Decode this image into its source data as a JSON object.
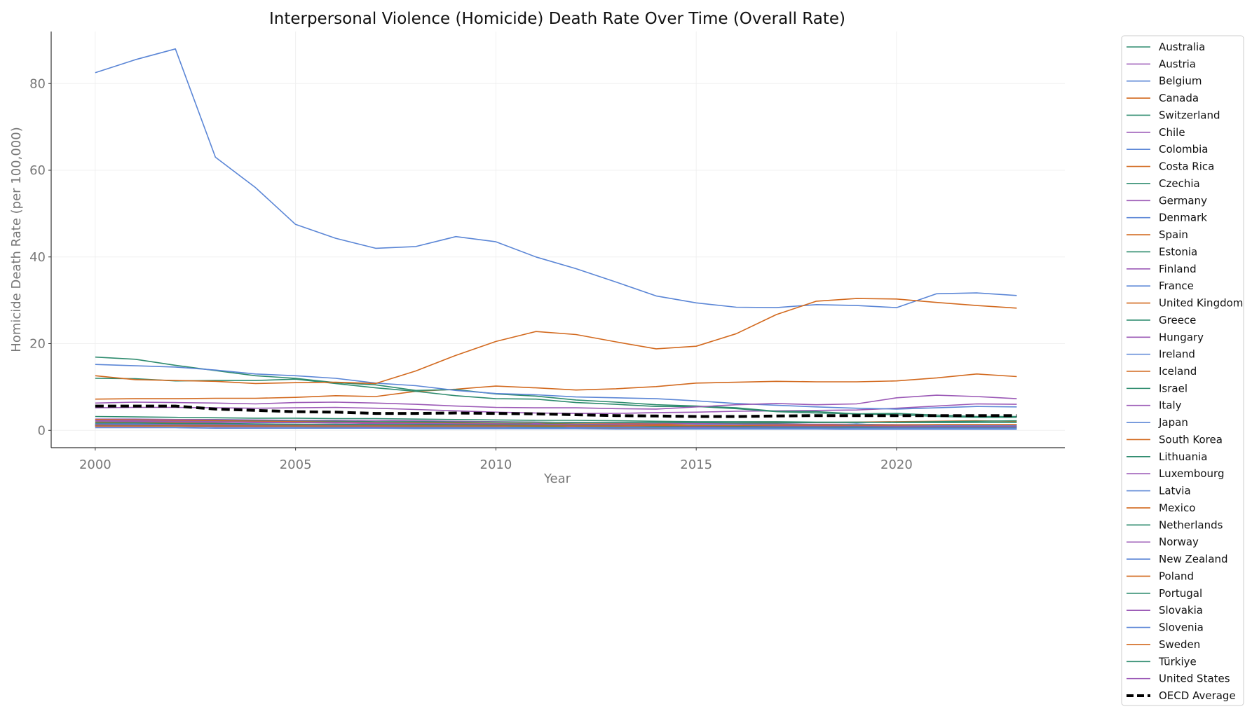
{
  "chart_data": {
    "type": "line",
    "title": "Interpersonal Violence (Homicide) Death Rate Over Time (Overall Rate)",
    "xlabel": "Year",
    "ylabel": "Homicide Death Rate (per 100,000)",
    "xlim": [
      1998.9,
      2024.2
    ],
    "ylim": [
      -4.0,
      92.0
    ],
    "xticks": [
      2000,
      2005,
      2010,
      2015,
      2020
    ],
    "yticks": [
      0,
      20,
      40,
      60,
      80
    ],
    "grid": true,
    "legend_position": "outside-right",
    "palette": [
      "#2e8b6e",
      "#9b59b6",
      "#5b86d6",
      "#d2691e"
    ],
    "average_color": "#000000",
    "x": [
      2000,
      2001,
      2002,
      2003,
      2004,
      2005,
      2006,
      2007,
      2008,
      2009,
      2010,
      2011,
      2012,
      2013,
      2014,
      2015,
      2016,
      2017,
      2018,
      2019,
      2020,
      2021,
      2022,
      2023
    ],
    "series": [
      {
        "name": "Australia",
        "values": [
          1.6,
          1.6,
          1.5,
          1.5,
          1.4,
          1.4,
          1.3,
          1.3,
          1.2,
          1.2,
          1.2,
          1.1,
          1.1,
          1.0,
          1.0,
          1.0,
          1.0,
          0.9,
          0.9,
          0.9,
          0.9,
          0.9,
          0.8,
          0.8
        ]
      },
      {
        "name": "Austria",
        "values": [
          0.9,
          0.9,
          0.9,
          0.8,
          0.8,
          0.8,
          0.8,
          0.8,
          0.7,
          0.7,
          0.7,
          0.7,
          0.7,
          0.7,
          0.6,
          0.6,
          0.7,
          0.7,
          0.7,
          0.6,
          0.6,
          0.6,
          0.6,
          0.6
        ]
      },
      {
        "name": "Belgium",
        "values": [
          2.0,
          2.0,
          1.9,
          1.9,
          1.8,
          1.8,
          1.8,
          1.7,
          1.7,
          1.6,
          1.6,
          1.6,
          1.5,
          1.5,
          1.5,
          1.4,
          1.4,
          1.3,
          1.3,
          1.2,
          1.2,
          1.2,
          1.2,
          1.2
        ]
      },
      {
        "name": "Canada",
        "values": [
          1.9,
          1.8,
          1.8,
          1.8,
          1.9,
          1.9,
          1.9,
          1.8,
          1.8,
          1.7,
          1.6,
          1.6,
          1.5,
          1.5,
          1.4,
          1.6,
          1.7,
          1.8,
          1.8,
          1.9,
          2.0,
          2.1,
          2.2,
          2.1
        ]
      },
      {
        "name": "Switzerland",
        "values": [
          1.2,
          1.1,
          1.1,
          1.0,
          1.0,
          0.9,
          0.9,
          0.9,
          0.8,
          0.8,
          0.8,
          0.7,
          0.7,
          0.7,
          0.6,
          0.6,
          0.6,
          0.6,
          0.6,
          0.5,
          0.5,
          0.5,
          0.5,
          0.5
        ]
      },
      {
        "name": "Chile",
        "values": [
          5.2,
          5.3,
          5.3,
          5.2,
          5.1,
          5.2,
          5.3,
          5.1,
          4.8,
          4.5,
          4.2,
          4.0,
          3.9,
          3.9,
          4.1,
          4.2,
          4.4,
          4.5,
          4.6,
          4.7,
          5.1,
          5.6,
          6.1,
          6.0
        ]
      },
      {
        "name": "Colombia",
        "values": [
          82.5,
          85.5,
          88.0,
          63.0,
          56.0,
          47.5,
          44.3,
          42.0,
          42.4,
          44.7,
          43.5,
          40.0,
          37.3,
          34.2,
          31.0,
          29.4,
          28.4,
          28.3,
          29.0,
          28.8,
          28.3,
          31.5,
          31.7,
          31.1
        ]
      },
      {
        "name": "Costa Rica",
        "values": [
          7.2,
          7.3,
          7.3,
          7.4,
          7.4,
          7.6,
          8.0,
          7.8,
          9.0,
          9.5,
          10.2,
          9.8,
          9.3,
          9.6,
          10.1,
          10.9,
          11.1,
          11.3,
          11.2,
          11.2,
          11.4,
          12.1,
          13.0,
          12.4
        ]
      },
      {
        "name": "Czechia",
        "values": [
          1.4,
          1.3,
          1.3,
          1.2,
          1.2,
          1.1,
          1.1,
          1.0,
          1.0,
          1.0,
          0.9,
          0.9,
          0.9,
          0.8,
          0.8,
          0.8,
          0.7,
          0.7,
          0.7,
          0.7,
          0.7,
          0.6,
          0.6,
          0.6
        ]
      },
      {
        "name": "Germany",
        "values": [
          0.9,
          0.9,
          0.9,
          0.9,
          0.8,
          0.8,
          0.8,
          0.7,
          0.7,
          0.7,
          0.7,
          0.7,
          0.7,
          0.6,
          0.6,
          0.6,
          0.7,
          0.7,
          0.6,
          0.6,
          0.6,
          0.6,
          0.6,
          0.6
        ]
      },
      {
        "name": "Denmark",
        "values": [
          1.1,
          1.1,
          1.0,
          1.0,
          1.0,
          1.0,
          1.0,
          0.9,
          0.9,
          0.9,
          0.9,
          0.9,
          0.9,
          0.9,
          0.9,
          0.9,
          1.0,
          1.0,
          1.0,
          0.9,
          0.9,
          0.9,
          0.9,
          0.9
        ]
      },
      {
        "name": "Spain",
        "values": [
          1.2,
          1.2,
          1.2,
          1.1,
          1.1,
          1.0,
          1.0,
          1.0,
          0.9,
          0.9,
          0.8,
          0.8,
          0.7,
          0.7,
          0.7,
          0.6,
          0.6,
          0.6,
          0.6,
          0.6,
          0.6,
          0.6,
          0.6,
          0.6
        ]
      },
      {
        "name": "Estonia",
        "values": [
          12.0,
          11.9,
          11.4,
          11.5,
          11.5,
          11.8,
          10.8,
          9.8,
          9.0,
          8.0,
          7.3,
          7.2,
          6.4,
          6.0,
          5.5,
          5.5,
          5.0,
          4.3,
          4.0,
          3.8,
          3.6,
          3.2,
          3.0,
          3.0
        ]
      },
      {
        "name": "Finland",
        "values": [
          2.6,
          2.6,
          2.5,
          2.5,
          2.4,
          2.3,
          2.3,
          2.3,
          2.2,
          2.1,
          2.0,
          1.9,
          1.8,
          1.7,
          1.7,
          1.6,
          1.5,
          1.5,
          1.4,
          1.4,
          1.3,
          1.3,
          1.3,
          1.3
        ]
      },
      {
        "name": "France",
        "values": [
          1.1,
          1.1,
          1.1,
          1.0,
          1.0,
          1.0,
          0.9,
          0.9,
          0.9,
          0.9,
          0.9,
          0.8,
          0.8,
          0.8,
          0.8,
          0.9,
          0.9,
          0.8,
          0.8,
          0.8,
          0.8,
          0.8,
          0.8,
          0.8
        ]
      },
      {
        "name": "United Kingdom",
        "values": [
          0.9,
          0.9,
          0.9,
          0.8,
          0.8,
          0.8,
          0.7,
          0.7,
          0.6,
          0.6,
          0.6,
          0.6,
          0.5,
          0.5,
          0.5,
          0.5,
          0.5,
          0.6,
          0.6,
          0.6,
          0.6,
          0.6,
          0.6,
          0.6
        ]
      },
      {
        "name": "Greece",
        "values": [
          1.1,
          1.1,
          1.1,
          1.1,
          1.1,
          1.1,
          1.2,
          1.2,
          1.3,
          1.4,
          1.5,
          1.5,
          1.4,
          1.3,
          1.2,
          1.1,
          1.0,
          1.0,
          0.9,
          0.9,
          0.9,
          0.9,
          0.9,
          0.9
        ]
      },
      {
        "name": "Hungary",
        "values": [
          2.2,
          2.1,
          2.0,
          1.9,
          1.8,
          1.8,
          1.7,
          1.6,
          1.6,
          1.5,
          1.4,
          1.3,
          1.3,
          1.2,
          1.2,
          1.1,
          1.1,
          1.0,
          1.0,
          0.9,
          0.9,
          0.9,
          0.8,
          0.8
        ]
      },
      {
        "name": "Ireland",
        "values": [
          1.2,
          1.2,
          1.1,
          1.1,
          1.1,
          1.1,
          1.1,
          1.1,
          1.0,
          1.0,
          1.0,
          0.9,
          0.9,
          0.9,
          0.8,
          0.8,
          0.8,
          0.8,
          0.8,
          0.8,
          0.8,
          0.7,
          0.7,
          0.7
        ]
      },
      {
        "name": "Iceland",
        "values": [
          1.3,
          1.2,
          1.2,
          1.2,
          1.1,
          1.1,
          1.0,
          1.0,
          1.0,
          0.9,
          0.9,
          0.9,
          0.8,
          0.8,
          0.8,
          0.8,
          0.8,
          0.8,
          0.8,
          0.8,
          0.8,
          0.8,
          0.8,
          0.8
        ]
      },
      {
        "name": "Israel",
        "values": [
          2.4,
          2.4,
          2.3,
          2.3,
          2.2,
          2.1,
          2.1,
          2.0,
          2.0,
          1.9,
          1.9,
          1.9,
          1.8,
          1.8,
          1.8,
          1.8,
          1.7,
          1.7,
          1.8,
          1.8,
          1.9,
          2.0,
          2.1,
          2.2
        ]
      },
      {
        "name": "Italy",
        "values": [
          1.2,
          1.2,
          1.1,
          1.1,
          1.0,
          1.0,
          1.0,
          0.9,
          0.9,
          0.9,
          0.8,
          0.8,
          0.8,
          0.8,
          0.7,
          0.7,
          0.7,
          0.7,
          0.6,
          0.6,
          0.6,
          0.6,
          0.6,
          0.6
        ]
      },
      {
        "name": "Japan",
        "values": [
          0.6,
          0.6,
          0.6,
          0.5,
          0.5,
          0.5,
          0.5,
          0.5,
          0.4,
          0.4,
          0.4,
          0.4,
          0.4,
          0.3,
          0.3,
          0.3,
          0.3,
          0.3,
          0.3,
          0.2,
          0.2,
          0.2,
          0.2,
          0.2
        ]
      },
      {
        "name": "South Korea",
        "values": [
          1.4,
          1.4,
          1.4,
          1.4,
          1.4,
          1.3,
          1.3,
          1.3,
          1.3,
          1.3,
          1.2,
          1.2,
          1.1,
          1.1,
          1.0,
          1.0,
          0.9,
          0.9,
          0.8,
          0.8,
          0.7,
          0.7,
          0.7,
          0.7
        ]
      },
      {
        "name": "Lithuania",
        "values": [
          16.9,
          16.4,
          15.0,
          13.8,
          12.6,
          12.0,
          11.0,
          10.5,
          9.2,
          9.4,
          8.4,
          7.9,
          7.0,
          6.5,
          5.9,
          5.6,
          5.2,
          4.4,
          4.3,
          3.8,
          3.9,
          3.5,
          3.2,
          3.2
        ]
      },
      {
        "name": "Luxembourg",
        "values": [
          1.3,
          1.3,
          1.2,
          1.2,
          1.2,
          1.1,
          1.1,
          1.0,
          1.0,
          0.9,
          0.9,
          0.9,
          0.8,
          0.8,
          0.8,
          0.8,
          0.7,
          0.7,
          0.7,
          0.7,
          0.7,
          0.6,
          0.6,
          0.6
        ]
      },
      {
        "name": "Latvia",
        "values": [
          15.2,
          14.9,
          14.6,
          13.9,
          13.0,
          12.6,
          12.0,
          10.9,
          10.3,
          9.2,
          8.5,
          8.2,
          7.7,
          7.5,
          7.3,
          6.8,
          6.2,
          5.8,
          5.4,
          5.1,
          4.9,
          5.2,
          5.5,
          5.4
        ]
      },
      {
        "name": "Mexico",
        "values": [
          12.6,
          11.7,
          11.5,
          11.3,
          10.8,
          11.0,
          11.1,
          10.8,
          13.7,
          17.3,
          20.5,
          22.8,
          22.1,
          20.4,
          18.8,
          19.4,
          22.3,
          26.7,
          29.8,
          30.4,
          30.3,
          29.5,
          28.8,
          28.2
        ]
      },
      {
        "name": "Netherlands",
        "values": [
          1.1,
          1.1,
          1.0,
          1.0,
          1.0,
          1.0,
          0.9,
          0.9,
          0.9,
          0.9,
          0.9,
          0.8,
          0.8,
          0.7,
          0.7,
          0.6,
          0.6,
          0.6,
          0.6,
          0.6,
          0.6,
          0.6,
          0.6,
          0.6
        ]
      },
      {
        "name": "Norway",
        "values": [
          0.9,
          0.9,
          0.9,
          0.8,
          0.8,
          0.8,
          0.8,
          0.7,
          0.7,
          0.7,
          0.7,
          1.6,
          0.7,
          0.6,
          0.6,
          0.6,
          0.6,
          0.5,
          0.5,
          0.5,
          0.5,
          0.5,
          0.5,
          0.5
        ]
      },
      {
        "name": "New Zealand",
        "values": [
          1.6,
          1.5,
          1.5,
          1.5,
          1.4,
          1.4,
          1.3,
          1.3,
          1.3,
          1.3,
          1.2,
          1.1,
          1.1,
          1.0,
          1.0,
          1.0,
          1.0,
          1.0,
          1.0,
          1.5,
          1.0,
          1.0,
          1.0,
          1.0
        ]
      },
      {
        "name": "Poland",
        "values": [
          2.5,
          2.4,
          2.3,
          2.2,
          2.1,
          2.0,
          1.9,
          1.8,
          1.7,
          1.6,
          1.5,
          1.4,
          1.3,
          1.2,
          1.1,
          1.0,
          1.0,
          0.9,
          0.9,
          0.8,
          0.8,
          0.8,
          0.8,
          0.8
        ]
      },
      {
        "name": "Portugal",
        "values": [
          1.7,
          1.7,
          1.6,
          1.6,
          1.5,
          1.4,
          1.4,
          1.3,
          1.3,
          1.3,
          1.2,
          1.2,
          1.1,
          1.1,
          1.0,
          1.0,
          0.9,
          0.9,
          0.9,
          0.8,
          0.8,
          0.8,
          0.8,
          0.8
        ]
      },
      {
        "name": "Slovakia",
        "values": [
          2.3,
          2.2,
          2.1,
          2.0,
          1.9,
          1.8,
          1.8,
          1.7,
          1.6,
          1.5,
          1.5,
          1.4,
          1.3,
          1.3,
          1.2,
          1.1,
          1.1,
          1.0,
          1.0,
          1.0,
          0.9,
          0.9,
          0.9,
          0.9
        ]
      },
      {
        "name": "Slovenia",
        "values": [
          1.0,
          1.0,
          0.9,
          0.9,
          0.9,
          0.8,
          0.8,
          0.8,
          0.7,
          0.7,
          0.7,
          0.6,
          0.6,
          0.6,
          0.6,
          0.5,
          0.5,
          0.5,
          0.5,
          0.5,
          0.5,
          0.5,
          0.5,
          0.5
        ]
      },
      {
        "name": "Sweden",
        "values": [
          1.0,
          1.0,
          1.0,
          1.0,
          1.0,
          1.0,
          1.0,
          1.0,
          1.0,
          1.0,
          1.0,
          1.0,
          1.0,
          1.0,
          1.1,
          1.1,
          1.1,
          1.2,
          1.2,
          1.2,
          1.2,
          1.3,
          1.3,
          1.3
        ]
      },
      {
        "name": "Türkiye",
        "values": [
          3.2,
          3.1,
          3.0,
          2.9,
          2.8,
          2.8,
          2.7,
          2.7,
          2.6,
          2.5,
          2.4,
          2.3,
          2.3,
          2.2,
          2.1,
          2.0,
          2.0,
          2.0,
          1.9,
          1.9,
          1.8,
          1.8,
          1.8,
          1.8
        ]
      },
      {
        "name": "United States",
        "values": [
          6.3,
          6.5,
          6.4,
          6.3,
          6.1,
          6.4,
          6.5,
          6.3,
          6.0,
          5.6,
          5.3,
          5.2,
          5.2,
          5.0,
          4.9,
          5.4,
          5.9,
          6.2,
          5.9,
          6.1,
          7.5,
          8.1,
          7.8,
          7.3
        ]
      },
      {
        "name": "OECD Average",
        "values": [
          5.6,
          5.6,
          5.6,
          4.9,
          4.6,
          4.3,
          4.2,
          3.9,
          3.9,
          4.0,
          3.9,
          3.8,
          3.6,
          3.4,
          3.3,
          3.2,
          3.2,
          3.3,
          3.4,
          3.4,
          3.4,
          3.4,
          3.4,
          3.4
        ]
      }
    ]
  }
}
